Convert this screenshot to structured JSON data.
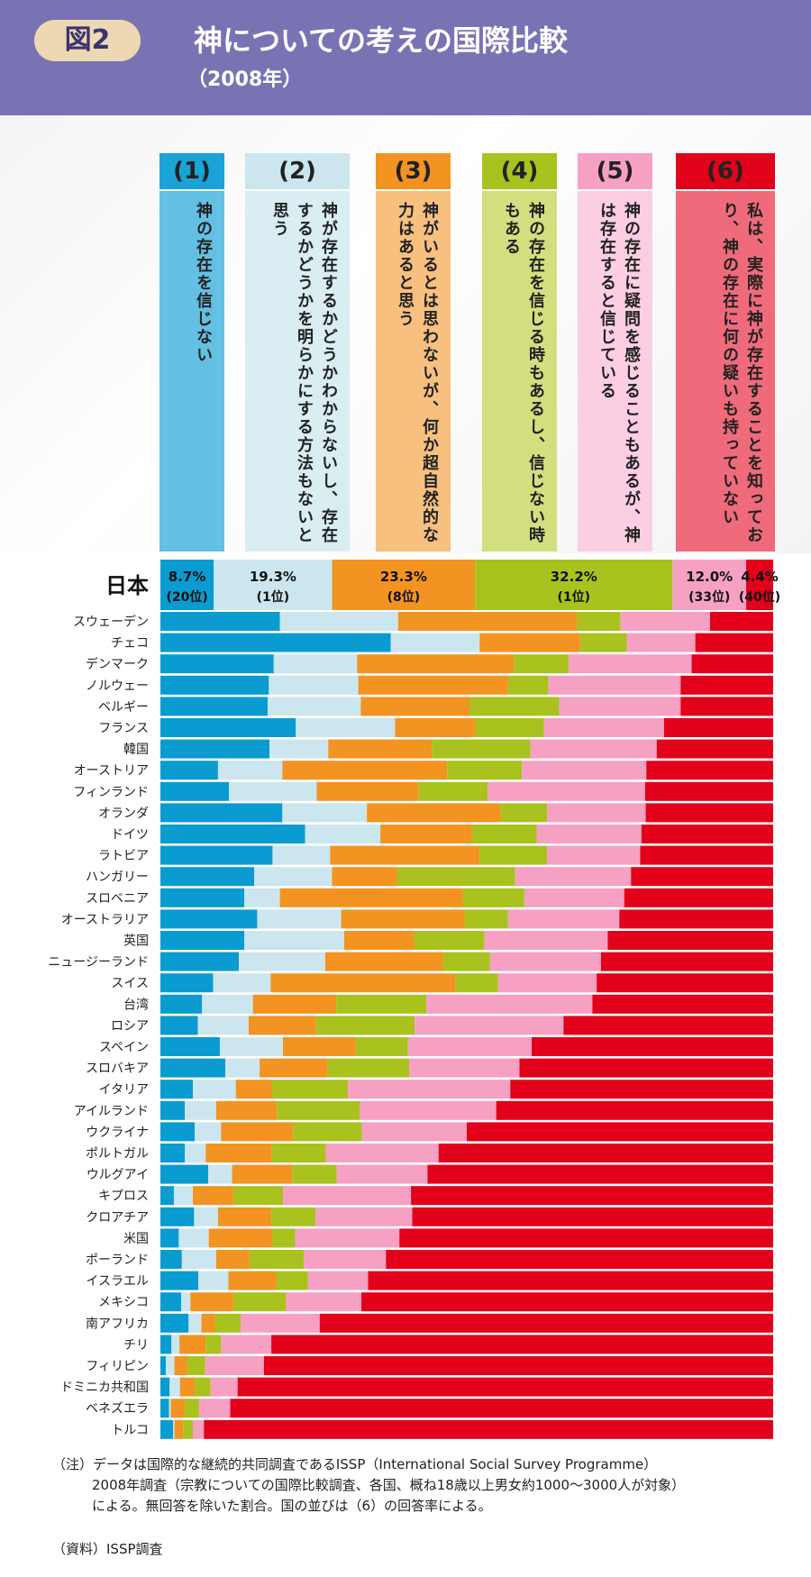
{
  "header": {
    "badge": "図2",
    "title": "神についての考えの国際比較",
    "subtitle": "（2008年）"
  },
  "colors": [
    "#0a9bd0",
    "#cbe6ee",
    "#f29322",
    "#a9c21e",
    "#f6a0c4",
    "#e2001a"
  ],
  "categories": [
    {
      "num": "(1)",
      "text": "神の存在を信じない",
      "hdr_color": "#1aa3d6",
      "body_color": "#63c0e3",
      "white": false
    },
    {
      "num": "(2)",
      "text": "神が存在するかどうかわからないし、存在するかどうかを明らかにする方法もないと思う",
      "hdr_color": "#cbe6ee",
      "body_color": "#d9edf2",
      "white": false
    },
    {
      "num": "(3)",
      "text": "神がいるとは思わないが、何か超自然的な力はあると思う",
      "hdr_color": "#f29322",
      "body_color": "#f7c07f",
      "white": false
    },
    {
      "num": "(4)",
      "text": "神の存在を信じる時もあるし、信じない時もある",
      "hdr_color": "#a9c21e",
      "body_color": "#d3df7f",
      "white": false
    },
    {
      "num": "(5)",
      "text": "神の存在に疑問を感じることもあるが、神は存在すると信じている",
      "hdr_color": "#f6a0c4",
      "body_color": "#fbcfe1",
      "white": false
    },
    {
      "num": "(6)",
      "text": "私は、実際に神が存在することを知っており、神の存在に何の疑いも持っていない",
      "hdr_color": "#e2001a",
      "body_color": "#ef6b7b",
      "white": false
    }
  ],
  "chart_data": {
    "type": "bar",
    "orientation": "horizontal",
    "stacked": true,
    "percent": true,
    "series_names": [
      "(1)",
      "(2)",
      "(3)",
      "(4)",
      "(5)",
      "(6)"
    ],
    "japan": {
      "label": "日本",
      "values": [
        8.7,
        19.3,
        23.3,
        32.2,
        12.0,
        4.4
      ],
      "value_labels": [
        "8.7%",
        "19.3%",
        "23.3%",
        "32.2%",
        "12.0%",
        "4.4%"
      ],
      "ranks": [
        "(20位)",
        "(1位)",
        "(8位)",
        "(1位)",
        "(33位)",
        "(40位)"
      ]
    },
    "countries": [
      {
        "name": "スウェーデン",
        "values": [
          19.5,
          19.3,
          29.2,
          7.1,
          14.6,
          10.3
        ]
      },
      {
        "name": "チェコ",
        "values": [
          37.6,
          14.5,
          16.4,
          7.6,
          11.2,
          12.7
        ]
      },
      {
        "name": "デンマーク",
        "values": [
          18.5,
          13.6,
          25.6,
          8.9,
          20.1,
          13.3
        ]
      },
      {
        "name": "ノルウェー",
        "values": [
          17.7,
          14.6,
          24.4,
          6.6,
          21.6,
          15.1
        ]
      },
      {
        "name": "ベルギー",
        "values": [
          17.5,
          15.2,
          17.8,
          14.6,
          19.8,
          15.1
        ]
      },
      {
        "name": "フランス",
        "values": [
          22.1,
          16.2,
          13.1,
          11.2,
          19.6,
          17.8
        ]
      },
      {
        "name": "韓国",
        "values": [
          17.8,
          9.6,
          16.9,
          16.1,
          20.6,
          19.0
        ]
      },
      {
        "name": "オーストリア",
        "values": [
          9.4,
          10.5,
          26.9,
          12.2,
          20.3,
          20.7
        ]
      },
      {
        "name": "フィンランド",
        "values": [
          11.2,
          14.3,
          16.6,
          11.3,
          25.7,
          20.9
        ]
      },
      {
        "name": "オランダ",
        "values": [
          19.9,
          13.8,
          21.8,
          7.6,
          16.1,
          20.8
        ]
      },
      {
        "name": "ドイツ",
        "values": [
          23.6,
          12.3,
          14.9,
          10.6,
          17.1,
          21.5
        ]
      },
      {
        "name": "ラトビア",
        "values": [
          18.3,
          9.4,
          24.4,
          11.0,
          15.2,
          21.7
        ]
      },
      {
        "name": "ハンガリー",
        "values": [
          15.3,
          12.7,
          10.6,
          19.3,
          18.9,
          23.2
        ]
      },
      {
        "name": "スロベニア",
        "values": [
          13.7,
          5.8,
          29.9,
          10.0,
          16.3,
          24.3
        ]
      },
      {
        "name": "オーストラリア",
        "values": [
          15.8,
          13.7,
          20.2,
          7.0,
          18.2,
          25.1
        ]
      },
      {
        "name": "英国",
        "values": [
          13.7,
          16.3,
          11.4,
          11.5,
          20.1,
          27.0
        ]
      },
      {
        "name": "ニュージーランド",
        "values": [
          12.8,
          14.1,
          19.2,
          7.7,
          18.1,
          28.1
        ]
      },
      {
        "name": "スイス",
        "values": [
          8.6,
          9.4,
          30.2,
          6.9,
          16.1,
          28.8
        ]
      },
      {
        "name": "台湾",
        "values": [
          6.8,
          8.3,
          13.6,
          14.7,
          27.1,
          29.5
        ]
      },
      {
        "name": "ロシア",
        "values": [
          6.1,
          8.3,
          11.0,
          16.1,
          24.3,
          34.2
        ]
      },
      {
        "name": "スペイン",
        "values": [
          9.7,
          10.3,
          11.9,
          8.5,
          20.2,
          39.4
        ]
      },
      {
        "name": "スロバキア",
        "values": [
          10.6,
          5.6,
          11.1,
          13.3,
          18.0,
          41.4
        ]
      },
      {
        "name": "イタリア",
        "values": [
          5.3,
          7.0,
          6.0,
          12.3,
          26.5,
          42.9
        ]
      },
      {
        "name": "アイルランド",
        "values": [
          4.0,
          5.1,
          9.9,
          13.5,
          22.3,
          45.2
        ]
      },
      {
        "name": "ウクライナ",
        "values": [
          5.6,
          4.3,
          11.7,
          11.3,
          17.1,
          50.0
        ]
      },
      {
        "name": "ポルトガル",
        "values": [
          4.0,
          3.4,
          10.8,
          8.8,
          18.4,
          54.6
        ]
      },
      {
        "name": "ウルグアイ",
        "values": [
          7.8,
          3.9,
          9.8,
          7.3,
          14.8,
          56.4
        ]
      },
      {
        "name": "キプロス",
        "values": [
          2.2,
          3.1,
          6.6,
          8.1,
          20.9,
          59.1
        ]
      },
      {
        "name": "クロアチア",
        "values": [
          5.5,
          3.9,
          8.7,
          7.2,
          15.8,
          58.9
        ]
      },
      {
        "name": "米国",
        "values": [
          3.0,
          4.9,
          10.4,
          3.7,
          17.0,
          61.0
        ]
      },
      {
        "name": "ポーランド",
        "values": [
          3.5,
          5.6,
          5.4,
          8.9,
          13.4,
          63.2
        ]
      },
      {
        "name": "イスラエル",
        "values": [
          6.2,
          4.9,
          7.8,
          5.2,
          9.8,
          66.1
        ]
      },
      {
        "name": "メキシコ",
        "values": [
          3.4,
          1.5,
          7.0,
          8.6,
          12.3,
          67.2
        ]
      },
      {
        "name": "南アフリカ",
        "values": [
          4.6,
          2.1,
          2.2,
          4.2,
          12.9,
          74.0
        ]
      },
      {
        "name": "チリ",
        "values": [
          1.8,
          1.3,
          4.3,
          2.5,
          8.2,
          81.9
        ]
      },
      {
        "name": "フィリピン",
        "values": [
          0.9,
          1.4,
          2.1,
          2.9,
          9.6,
          83.1
        ]
      },
      {
        "name": "ドミニカ共和国",
        "values": [
          1.5,
          1.7,
          2.4,
          2.6,
          4.4,
          87.4
        ]
      },
      {
        "name": "ベネズエラ",
        "values": [
          1.4,
          0.3,
          2.2,
          2.4,
          5.1,
          88.6
        ]
      },
      {
        "name": "トルコ",
        "values": [
          2.1,
          0.2,
          1.4,
          1.6,
          1.8,
          92.9
        ]
      }
    ]
  },
  "notes": {
    "line1": "（注）データは国際的な継続的共同調査であるISSP（International Social Survey Programme）",
    "line2": "2008年調査（宗教についての国際比較調査、各国、概ね18歳以上男女約1000〜3000人が対象）",
    "line3": "による。無回答を除いた割合。国の並びは（6）の回答率による。",
    "source": "（資料）ISSP調査"
  }
}
